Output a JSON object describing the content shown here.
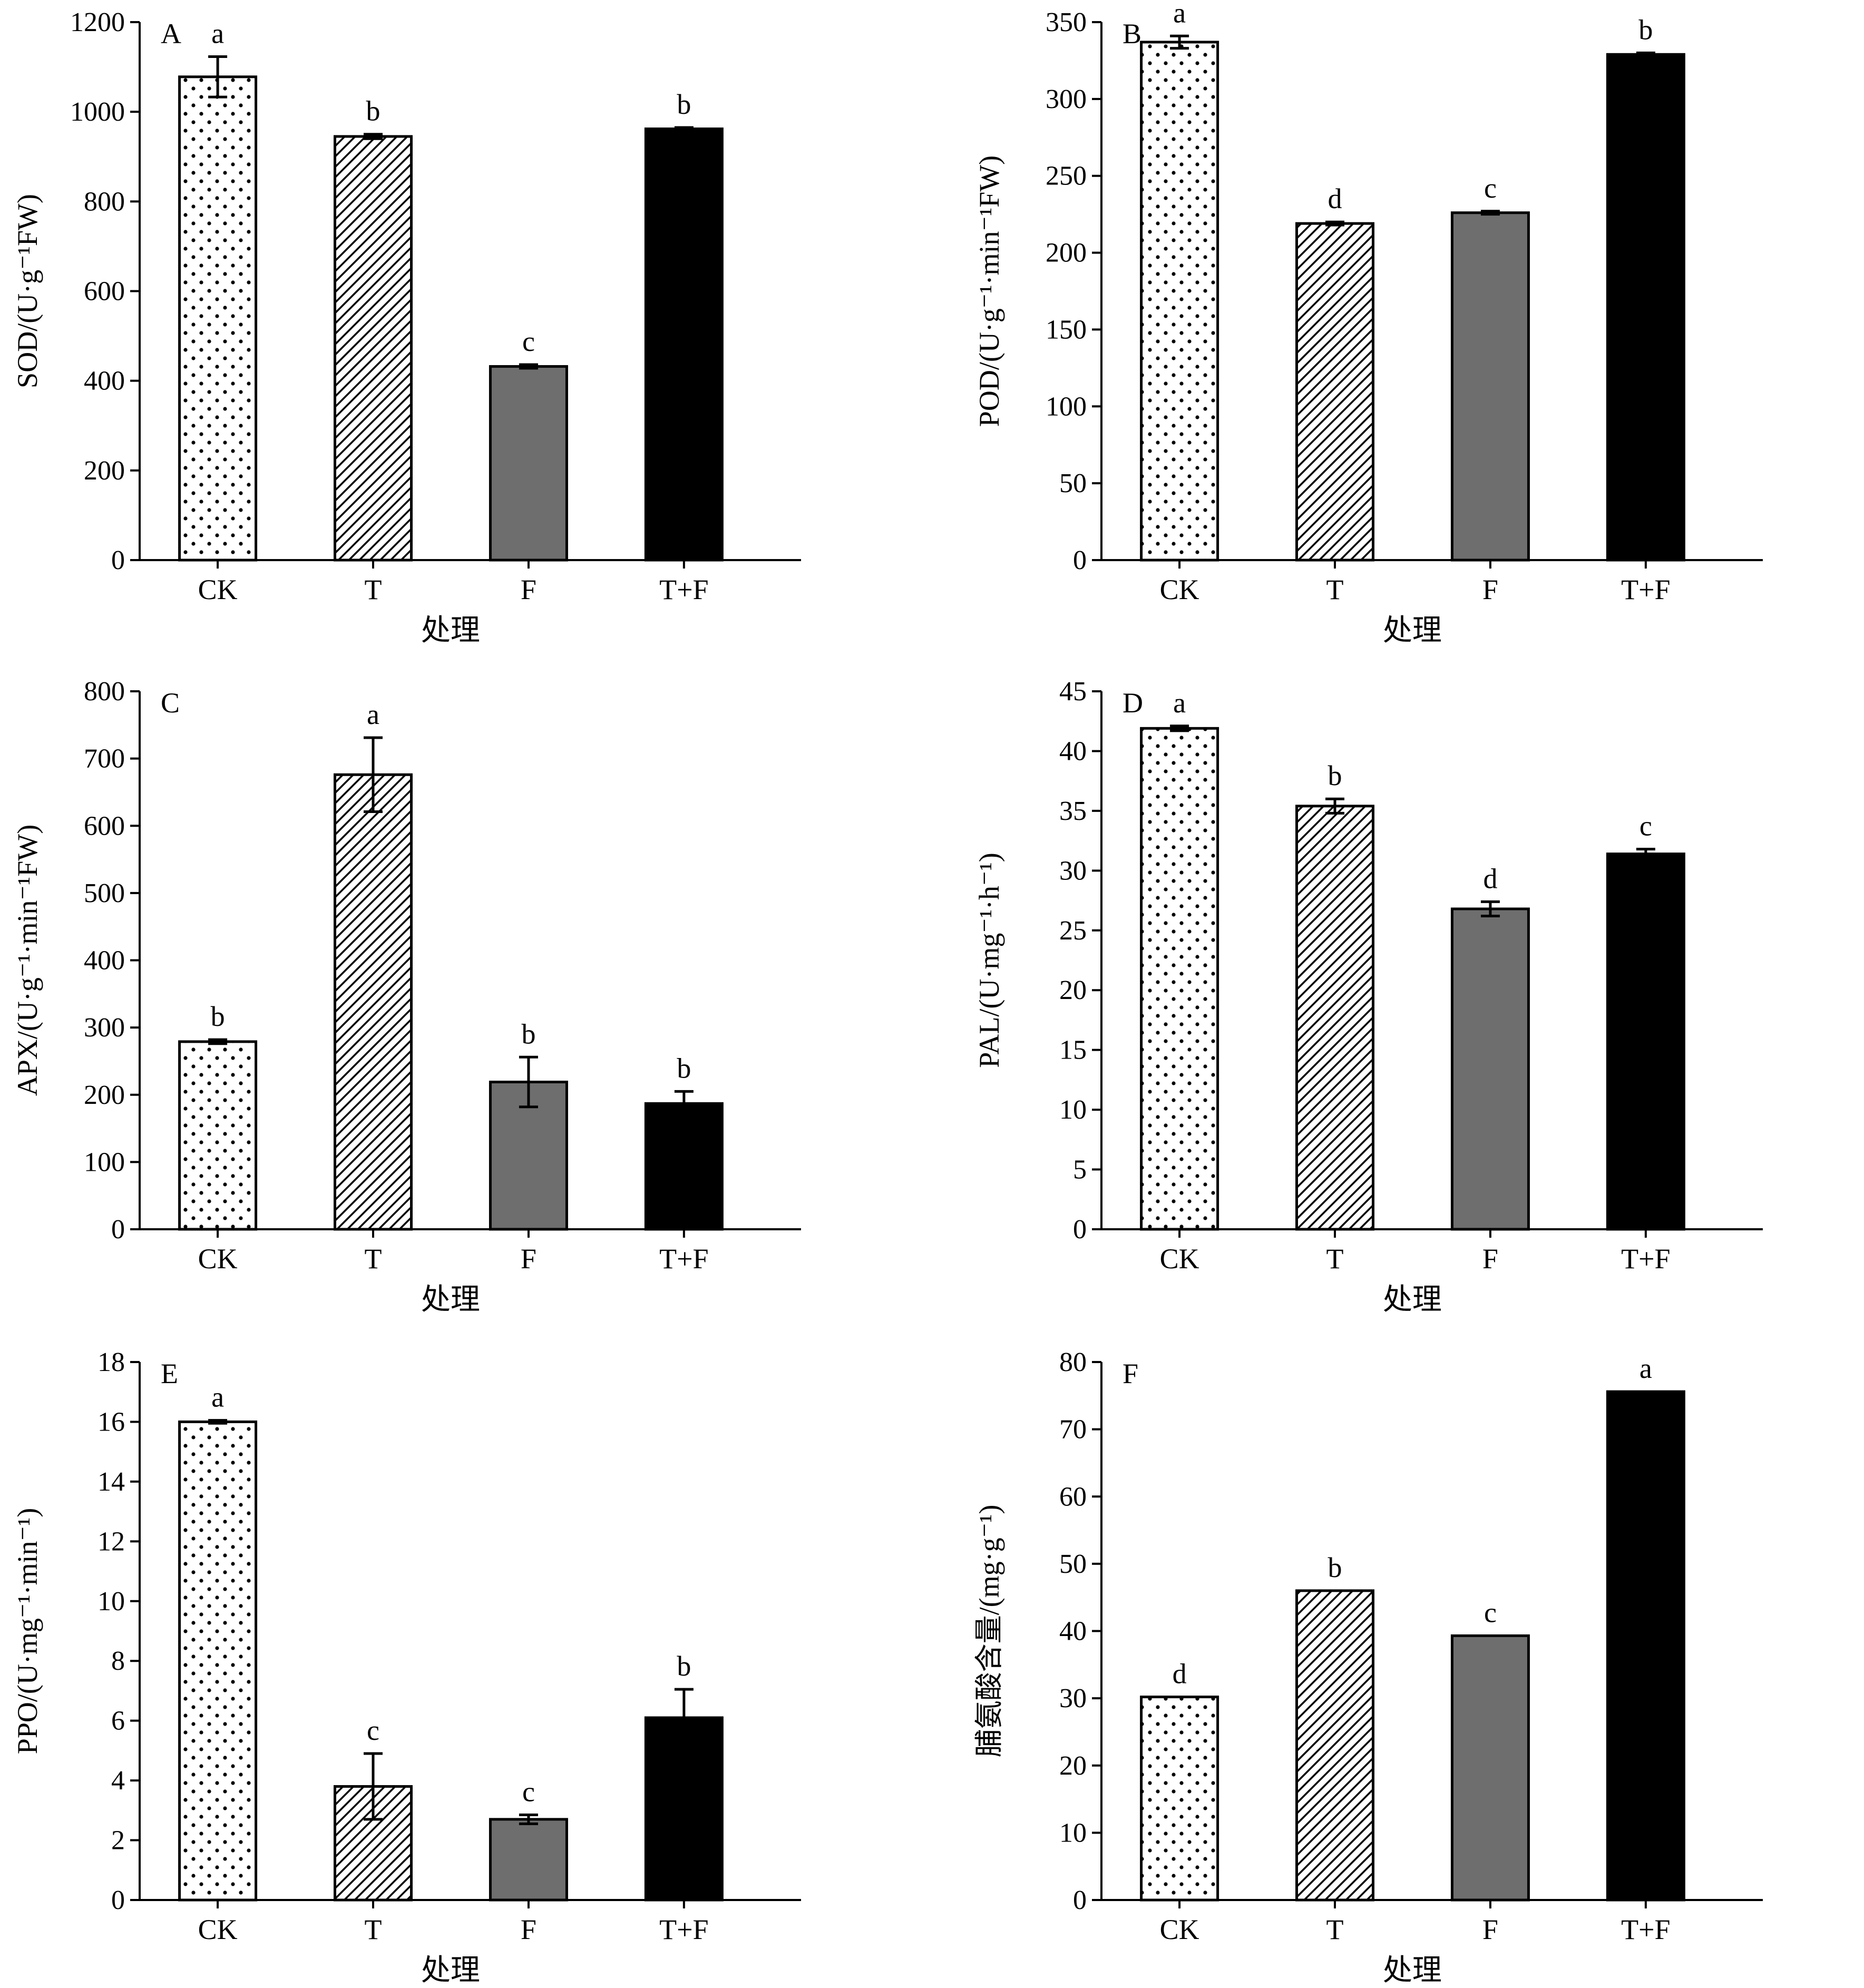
{
  "colors": {
    "axis": "#000000",
    "bar_edge": "#000000",
    "F_fill": "#6e6e6e",
    "TF_fill": "#000000"
  },
  "chart_data": [
    {
      "panel": "A",
      "type": "bar",
      "categories": [
        "CK",
        "T",
        "F",
        "T+F"
      ],
      "values": [
        1078,
        945,
        432,
        962
      ],
      "errors": [
        45,
        5,
        4,
        3
      ],
      "letters": [
        "a",
        "b",
        "c",
        "b"
      ],
      "fills": [
        "dots",
        "hatch",
        "gray",
        "black"
      ],
      "xlabel": "处理",
      "ylabel": "SOD/(U·g⁻¹FW)",
      "ylim": [
        0,
        1200
      ],
      "yticks": [
        0,
        200,
        400,
        600,
        800,
        1000,
        1200
      ],
      "ytick_labels": [
        "0",
        "200",
        "400",
        "600",
        "800",
        "1000",
        "1200"
      ]
    },
    {
      "panel": "B",
      "type": "bar",
      "categories": [
        "CK",
        "T",
        "F",
        "T+F"
      ],
      "values": [
        337,
        219,
        226,
        329
      ],
      "errors": [
        4,
        1,
        1,
        1
      ],
      "letters": [
        "a",
        "d",
        "c",
        "b"
      ],
      "fills": [
        "dots",
        "hatch",
        "gray",
        "black"
      ],
      "xlabel": "处理",
      "ylabel": "POD/(U·g⁻¹·min⁻¹FW)",
      "ylim": [
        0,
        350
      ],
      "yticks": [
        0,
        50,
        100,
        150,
        200,
        250,
        300,
        350
      ],
      "ytick_labels": [
        "0",
        "50",
        "100",
        "150",
        "200",
        "250",
        "300",
        "350"
      ]
    },
    {
      "panel": "C",
      "type": "bar",
      "categories": [
        "CK",
        "T",
        "F",
        "T+F"
      ],
      "values": [
        279,
        676,
        219,
        187
      ],
      "errors": [
        3,
        55,
        37,
        18
      ],
      "letters": [
        "b",
        "a",
        "b",
        "b"
      ],
      "fills": [
        "dots",
        "hatch",
        "gray",
        "black"
      ],
      "xlabel": "处理",
      "ylabel": "APX/(U·g⁻¹·min⁻¹FW)",
      "ylim": [
        0,
        800
      ],
      "yticks": [
        0,
        100,
        200,
        300,
        400,
        500,
        600,
        700,
        800
      ],
      "ytick_labels": [
        "0",
        "100",
        "200",
        "300",
        "400",
        "500",
        "600",
        "700",
        "800"
      ]
    },
    {
      "panel": "D",
      "type": "bar",
      "categories": [
        "CK",
        "T",
        "F",
        "T+F"
      ],
      "values": [
        41.9,
        35.4,
        26.8,
        31.4
      ],
      "errors": [
        0.2,
        0.6,
        0.6,
        0.4
      ],
      "letters": [
        "a",
        "b",
        "d",
        "c"
      ],
      "fills": [
        "dots",
        "hatch",
        "gray",
        "black"
      ],
      "xlabel": "处理",
      "ylabel": "PAL/(U·mg⁻¹·h⁻¹)",
      "ylim": [
        0,
        45
      ],
      "yticks": [
        0,
        5,
        10,
        15,
        20,
        25,
        30,
        35,
        40,
        45
      ],
      "ytick_labels": [
        "0",
        "5",
        "10",
        "15",
        "20",
        "25",
        "30",
        "35",
        "40",
        "45"
      ]
    },
    {
      "panel": "E",
      "type": "bar",
      "categories": [
        "CK",
        "T",
        "F",
        "T+F"
      ],
      "values": [
        16.0,
        3.8,
        2.7,
        6.1
      ],
      "errors": [
        0.05,
        1.1,
        0.15,
        0.95
      ],
      "letters": [
        "a",
        "c",
        "c",
        "b"
      ],
      "fills": [
        "dots",
        "hatch",
        "gray",
        "black"
      ],
      "xlabel": "处理",
      "ylabel": "PPO/(U·mg⁻¹·min⁻¹)",
      "ylim": [
        0,
        18
      ],
      "yticks": [
        0,
        2,
        4,
        6,
        8,
        10,
        12,
        14,
        16,
        18
      ],
      "ytick_labels": [
        "0",
        "2",
        "4",
        "6",
        "8",
        "10",
        "12",
        "14",
        "16",
        "18"
      ]
    },
    {
      "panel": "F",
      "type": "bar",
      "categories": [
        "CK",
        "T",
        "F",
        "T+F"
      ],
      "values": [
        30.2,
        46.0,
        39.3,
        75.6
      ],
      "errors": [
        0,
        0,
        0,
        0
      ],
      "letters": [
        "d",
        "b",
        "c",
        "a"
      ],
      "fills": [
        "dots",
        "hatch",
        "gray",
        "black"
      ],
      "xlabel": "处理",
      "ylabel": "脯氨酸含量/(mg·g⁻¹)",
      "ylim": [
        0,
        80
      ],
      "yticks": [
        0,
        10,
        20,
        30,
        40,
        50,
        60,
        70,
        80
      ],
      "ytick_labels": [
        "0",
        "10",
        "20",
        "30",
        "40",
        "50",
        "60",
        "70",
        "80"
      ]
    }
  ]
}
